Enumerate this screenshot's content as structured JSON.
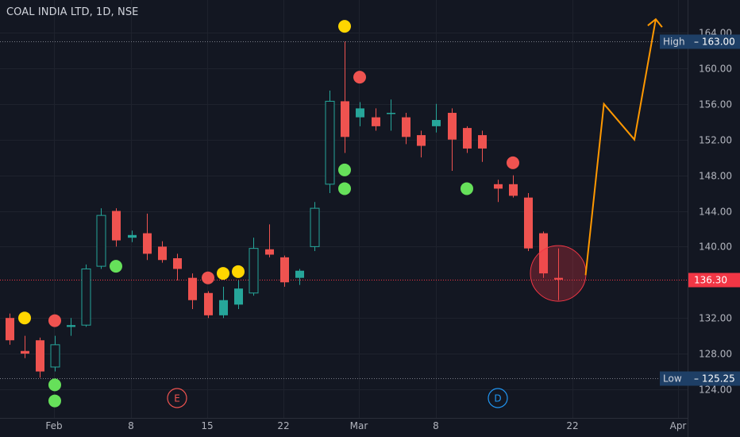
{
  "header": {
    "title": "COAL INDIA LTD, 1D, NSE"
  },
  "colors": {
    "background": "#131722",
    "grid": "#1e222d",
    "axis_text": "#b2b5be",
    "up": "#26a69a",
    "down": "#ef5350",
    "forecast_line": "#ff9800",
    "dot_yellow": "#ffd600",
    "dot_red": "#ef5350",
    "dot_green": "#66e05a",
    "label_bg": "#1e3f66",
    "last_price_bg": "#f23645"
  },
  "chart_data": {
    "type": "candlestick",
    "x_tick_labels": [
      "Feb",
      "8",
      "15",
      "22",
      "Mar",
      "8",
      "22",
      "Apr"
    ],
    "y_ticks": [
      124,
      128,
      132,
      140,
      144,
      148,
      152,
      156,
      160,
      164
    ],
    "y_tick_labels": [
      "124.00",
      "128.00",
      "132.00",
      "140.00",
      "144.00",
      "148.00",
      "152.00",
      "156.00",
      "160.00",
      "164.00"
    ],
    "ylim": [
      122.5,
      165.5
    ],
    "grid": true,
    "candles": [
      {
        "date": "Jan 27",
        "open": 132.0,
        "high": 132.5,
        "low": 129.0,
        "close": 129.5
      },
      {
        "date": "Jan 28",
        "open": 128.3,
        "high": 130.0,
        "low": 127.5,
        "close": 128.0
      },
      {
        "date": "Jan 29",
        "open": 129.5,
        "high": 129.8,
        "low": 125.3,
        "close": 126.0
      },
      {
        "date": "Feb 1",
        "open": 126.5,
        "high": 130.0,
        "low": 126.0,
        "close": 129.0
      },
      {
        "date": "Feb 2",
        "open": 131.0,
        "high": 132.0,
        "low": 130.0,
        "close": 131.2
      },
      {
        "date": "Feb 3",
        "open": 131.2,
        "high": 138.0,
        "low": 131.0,
        "close": 137.5
      },
      {
        "date": "Feb 4",
        "open": 137.8,
        "high": 144.3,
        "low": 137.5,
        "close": 143.5
      },
      {
        "date": "Feb 5",
        "open": 144.0,
        "high": 144.3,
        "low": 140.0,
        "close": 140.7
      },
      {
        "date": "Feb 8",
        "open": 141.0,
        "high": 141.8,
        "low": 140.5,
        "close": 141.3
      },
      {
        "date": "Feb 9",
        "open": 141.5,
        "high": 143.7,
        "low": 138.5,
        "close": 139.2
      },
      {
        "date": "Feb 10",
        "open": 140.0,
        "high": 140.6,
        "low": 138.2,
        "close": 138.5
      },
      {
        "date": "Feb 11",
        "open": 138.7,
        "high": 139.2,
        "low": 136.2,
        "close": 137.5
      },
      {
        "date": "Feb 12",
        "open": 136.5,
        "high": 137.0,
        "low": 133.0,
        "close": 134.0
      },
      {
        "date": "Feb 15",
        "open": 134.8,
        "high": 135.0,
        "low": 132.0,
        "close": 132.3
      },
      {
        "date": "Feb 16",
        "open": 132.3,
        "high": 135.5,
        "low": 132.0,
        "close": 134.0
      },
      {
        "date": "Feb 17",
        "open": 133.5,
        "high": 136.2,
        "low": 133.0,
        "close": 135.3
      },
      {
        "date": "Feb 18",
        "open": 134.8,
        "high": 141.0,
        "low": 134.5,
        "close": 139.8
      },
      {
        "date": "Feb 19",
        "open": 139.7,
        "high": 142.5,
        "low": 138.8,
        "close": 139.1
      },
      {
        "date": "Feb 22",
        "open": 138.8,
        "high": 139.0,
        "low": 135.5,
        "close": 136.0
      },
      {
        "date": "Feb 23",
        "open": 136.5,
        "high": 137.5,
        "low": 135.7,
        "close": 137.3
      },
      {
        "date": "Feb 24",
        "open": 140.0,
        "high": 145.0,
        "low": 139.5,
        "close": 144.3
      },
      {
        "date": "Feb 25",
        "open": 147.0,
        "high": 157.5,
        "low": 146.0,
        "close": 156.3
      },
      {
        "date": "Feb 26",
        "open": 156.3,
        "high": 163.0,
        "low": 150.5,
        "close": 152.3
      },
      {
        "date": "Mar 1",
        "open": 154.5,
        "high": 156.2,
        "low": 153.5,
        "close": 155.5
      },
      {
        "date": "Mar 2",
        "open": 154.5,
        "high": 155.5,
        "low": 153.0,
        "close": 153.5
      },
      {
        "date": "Mar 3",
        "open": 155.0,
        "high": 156.5,
        "low": 153.0,
        "close": 155.0
      },
      {
        "date": "Mar 4",
        "open": 154.5,
        "high": 155.0,
        "low": 151.5,
        "close": 152.3
      },
      {
        "date": "Mar 5",
        "open": 152.5,
        "high": 153.0,
        "low": 150.0,
        "close": 151.3
      },
      {
        "date": "Mar 8",
        "open": 153.5,
        "high": 156.0,
        "low": 152.8,
        "close": 154.2
      },
      {
        "date": "Mar 9",
        "open": 155.0,
        "high": 155.5,
        "low": 148.5,
        "close": 152.0
      },
      {
        "date": "Mar 10",
        "open": 153.3,
        "high": 153.5,
        "low": 150.5,
        "close": 151.0
      },
      {
        "date": "Mar 12",
        "open": 152.5,
        "high": 153.0,
        "low": 149.5,
        "close": 151.0
      },
      {
        "date": "Mar 15",
        "open": 147.0,
        "high": 147.5,
        "low": 145.0,
        "close": 146.5
      },
      {
        "date": "Mar 16",
        "open": 147.0,
        "high": 148.0,
        "low": 145.5,
        "close": 145.7
      },
      {
        "date": "Mar 17",
        "open": 145.5,
        "high": 146.0,
        "low": 139.5,
        "close": 139.8
      },
      {
        "date": "Mar 18",
        "open": 141.5,
        "high": 141.7,
        "low": 136.5,
        "close": 137.0
      },
      {
        "date": "Mar 19",
        "open": 136.5,
        "high": 139.8,
        "low": 134.0,
        "close": 136.3
      }
    ],
    "signals": [
      {
        "color": "yellow",
        "candle": 1,
        "value": 132.0
      },
      {
        "color": "green",
        "candle": 3,
        "value": 124.5
      },
      {
        "color": "green",
        "candle": 3,
        "value": 122.7
      },
      {
        "color": "red",
        "candle": 3,
        "value": 131.7
      },
      {
        "color": "green",
        "candle": 7,
        "value": 137.8
      },
      {
        "color": "red",
        "candle": 13,
        "value": 136.5
      },
      {
        "color": "yellow",
        "candle": 14,
        "value": 137.0
      },
      {
        "color": "yellow",
        "candle": 15,
        "value": 137.2
      },
      {
        "color": "yellow",
        "candle": 22,
        "value": 164.7
      },
      {
        "color": "green",
        "candle": 22,
        "value": 148.6
      },
      {
        "color": "green",
        "candle": 22,
        "value": 146.5
      },
      {
        "color": "red",
        "candle": 23,
        "value": 159.0
      },
      {
        "color": "green",
        "candle": 30,
        "value": 146.5
      },
      {
        "color": "red",
        "candle": 33,
        "value": 149.4
      }
    ],
    "events": [
      {
        "label": "E",
        "candle": 11,
        "color": "#ef5350"
      },
      {
        "label": "D",
        "candle": 32,
        "color": "#2196f3"
      }
    ],
    "forecast_path": [
      {
        "slot": 37.8,
        "value": 136.8
      },
      {
        "slot": 39.0,
        "value": 156.0
      },
      {
        "slot": 41.0,
        "value": 152.0
      },
      {
        "slot": 42.4,
        "value": 165.5
      }
    ],
    "highlight_circle": {
      "candle": 36,
      "value": 137.0
    },
    "high": {
      "label": "High",
      "value": "163.00",
      "level": 163.0
    },
    "low": {
      "label": "Low",
      "value": "125.25",
      "level": 125.25
    },
    "last_price": {
      "value": "136.30",
      "level": 136.3
    }
  }
}
